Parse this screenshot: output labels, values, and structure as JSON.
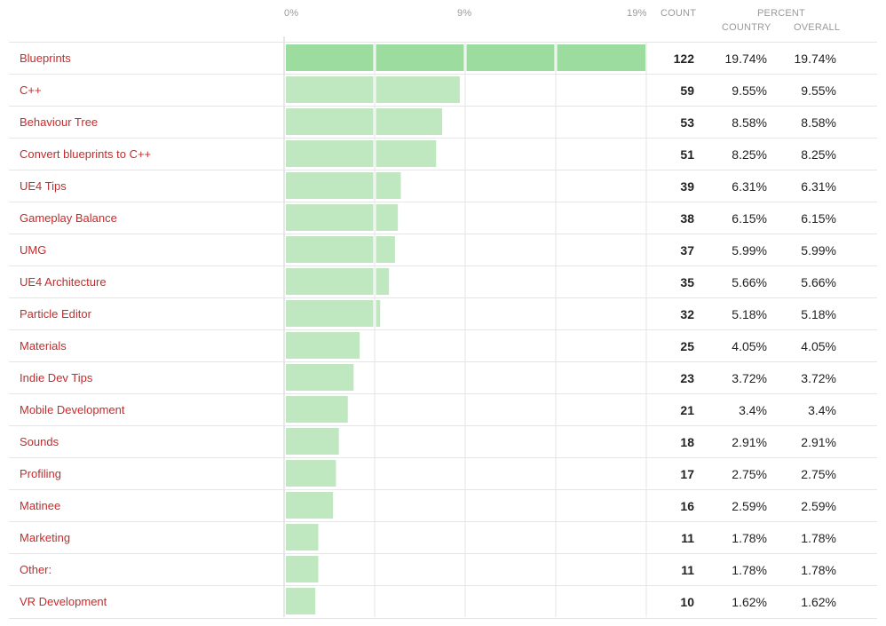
{
  "header": {
    "count_label": "COUNT",
    "percent_label": "PERCENT",
    "country_label": "COUNTRY",
    "overall_label": "OVERALL"
  },
  "colors": {
    "bar": "#bfe8c0",
    "bar_top": "#9ddc9f",
    "label": "#c62b2b",
    "grid": "#e6e6e6"
  },
  "chart_data": {
    "type": "bar",
    "orientation": "horizontal",
    "x_ticks": [
      "0%",
      "9%",
      "19%"
    ],
    "xlim": [
      0,
      19.74
    ],
    "grid": true,
    "categories": [
      "Blueprints",
      "C++",
      "Behaviour Tree",
      "Convert blueprints to C++",
      "UE4 Tips",
      "Gameplay Balance",
      "UMG",
      "UE4 Architecture",
      "Particle Editor",
      "Materials",
      "Indie Dev Tips",
      "Mobile Development",
      "Sounds",
      "Profiling",
      "Matinee",
      "Marketing",
      "Other:",
      "VR Development"
    ],
    "series": [
      {
        "values": [
          19.74,
          9.55,
          8.58,
          8.25,
          6.31,
          6.15,
          5.99,
          5.66,
          5.18,
          4.05,
          3.72,
          3.4,
          2.91,
          2.75,
          2.59,
          1.78,
          1.78,
          1.62
        ]
      }
    ],
    "rows": [
      {
        "label": "Blueprints",
        "count": "122",
        "country": "19.74%",
        "overall": "19.74%"
      },
      {
        "label": "C++",
        "count": "59",
        "country": "9.55%",
        "overall": "9.55%"
      },
      {
        "label": "Behaviour Tree",
        "count": "53",
        "country": "8.58%",
        "overall": "8.58%"
      },
      {
        "label": "Convert blueprints to C++",
        "count": "51",
        "country": "8.25%",
        "overall": "8.25%"
      },
      {
        "label": "UE4 Tips",
        "count": "39",
        "country": "6.31%",
        "overall": "6.31%"
      },
      {
        "label": "Gameplay Balance",
        "count": "38",
        "country": "6.15%",
        "overall": "6.15%"
      },
      {
        "label": "UMG",
        "count": "37",
        "country": "5.99%",
        "overall": "5.99%"
      },
      {
        "label": "UE4 Architecture",
        "count": "35",
        "country": "5.66%",
        "overall": "5.66%"
      },
      {
        "label": "Particle Editor",
        "count": "32",
        "country": "5.18%",
        "overall": "5.18%"
      },
      {
        "label": "Materials",
        "count": "25",
        "country": "4.05%",
        "overall": "4.05%"
      },
      {
        "label": "Indie Dev Tips",
        "count": "23",
        "country": "3.72%",
        "overall": "3.72%"
      },
      {
        "label": "Mobile Development",
        "count": "21",
        "country": "3.4%",
        "overall": "3.4%"
      },
      {
        "label": "Sounds",
        "count": "18",
        "country": "2.91%",
        "overall": "2.91%"
      },
      {
        "label": "Profiling",
        "count": "17",
        "country": "2.75%",
        "overall": "2.75%"
      },
      {
        "label": "Matinee",
        "count": "16",
        "country": "2.59%",
        "overall": "2.59%"
      },
      {
        "label": "Marketing",
        "count": "11",
        "country": "1.78%",
        "overall": "1.78%"
      },
      {
        "label": "Other:",
        "count": "11",
        "country": "1.78%",
        "overall": "1.78%"
      },
      {
        "label": "VR Development",
        "count": "10",
        "country": "1.62%",
        "overall": "1.62%"
      }
    ]
  }
}
